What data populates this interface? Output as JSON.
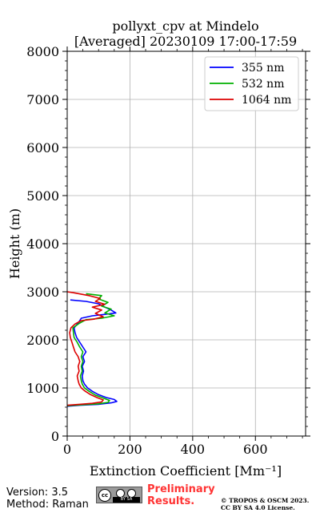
{
  "chart_data": {
    "type": "line",
    "title_line1": "pollyxt_cpv at Mindelo",
    "title_line2": "[Averaged] 20230109 17:00-17:59",
    "xlabel": "Extinction Coefficient [Mm⁻¹]",
    "ylabel": "Height (m)",
    "xlim": [
      0,
      760
    ],
    "ylim": [
      0,
      8000
    ],
    "x_ticks": [
      0,
      200,
      400,
      600
    ],
    "y_ticks": [
      0,
      1000,
      2000,
      3000,
      4000,
      5000,
      6000,
      7000,
      8000
    ],
    "grid": true,
    "legend_position": "upper right",
    "series": [
      {
        "name": "355 nm",
        "color": "#0000ff",
        "points": [
          [
            0,
            620
          ],
          [
            40,
            640
          ],
          [
            100,
            660
          ],
          [
            140,
            690
          ],
          [
            158,
            720
          ],
          [
            150,
            760
          ],
          [
            125,
            800
          ],
          [
            100,
            860
          ],
          [
            80,
            930
          ],
          [
            65,
            1000
          ],
          [
            55,
            1080
          ],
          [
            50,
            1150
          ],
          [
            48,
            1250
          ],
          [
            52,
            1350
          ],
          [
            48,
            1450
          ],
          [
            55,
            1550
          ],
          [
            50,
            1650
          ],
          [
            60,
            1750
          ],
          [
            50,
            1850
          ],
          [
            40,
            1950
          ],
          [
            30,
            2050
          ],
          [
            25,
            2150
          ],
          [
            22,
            2250
          ],
          [
            35,
            2350
          ],
          [
            45,
            2450
          ],
          [
            80,
            2500
          ],
          [
            120,
            2530
          ],
          [
            155,
            2560
          ],
          [
            140,
            2620
          ],
          [
            120,
            2680
          ],
          [
            100,
            2750
          ],
          [
            60,
            2800
          ],
          [
            10,
            2830
          ]
        ]
      },
      {
        "name": "532 nm",
        "color": "#00b000",
        "points": [
          [
            0,
            630
          ],
          [
            50,
            650
          ],
          [
            100,
            670
          ],
          [
            130,
            700
          ],
          [
            135,
            740
          ],
          [
            115,
            790
          ],
          [
            90,
            850
          ],
          [
            70,
            930
          ],
          [
            55,
            1000
          ],
          [
            48,
            1080
          ],
          [
            45,
            1150
          ],
          [
            42,
            1250
          ],
          [
            48,
            1350
          ],
          [
            45,
            1450
          ],
          [
            50,
            1550
          ],
          [
            45,
            1650
          ],
          [
            50,
            1750
          ],
          [
            40,
            1850
          ],
          [
            32,
            1950
          ],
          [
            22,
            2050
          ],
          [
            20,
            2150
          ],
          [
            18,
            2250
          ],
          [
            40,
            2350
          ],
          [
            60,
            2420
          ],
          [
            110,
            2450
          ],
          [
            150,
            2500
          ],
          [
            120,
            2560
          ],
          [
            140,
            2640
          ],
          [
            110,
            2700
          ],
          [
            130,
            2780
          ],
          [
            100,
            2850
          ],
          [
            110,
            2920
          ],
          [
            60,
            2960
          ]
        ]
      },
      {
        "name": "1064 nm",
        "color": "#dd0000",
        "points": [
          [
            0,
            640
          ],
          [
            40,
            660
          ],
          [
            80,
            680
          ],
          [
            110,
            710
          ],
          [
            115,
            750
          ],
          [
            95,
            800
          ],
          [
            75,
            860
          ],
          [
            58,
            930
          ],
          [
            45,
            1000
          ],
          [
            38,
            1080
          ],
          [
            35,
            1150
          ],
          [
            32,
            1250
          ],
          [
            38,
            1350
          ],
          [
            35,
            1450
          ],
          [
            40,
            1550
          ],
          [
            35,
            1650
          ],
          [
            25,
            1750
          ],
          [
            20,
            1850
          ],
          [
            15,
            1950
          ],
          [
            10,
            2050
          ],
          [
            8,
            2150
          ],
          [
            12,
            2250
          ],
          [
            25,
            2330
          ],
          [
            45,
            2400
          ],
          [
            85,
            2430
          ],
          [
            115,
            2480
          ],
          [
            90,
            2550
          ],
          [
            110,
            2620
          ],
          [
            80,
            2680
          ],
          [
            120,
            2740
          ],
          [
            90,
            2800
          ],
          [
            105,
            2860
          ],
          [
            70,
            2920
          ],
          [
            20,
            2980
          ],
          [
            0,
            3000
          ]
        ]
      }
    ]
  },
  "footer": {
    "version": "Version: 3.5",
    "method": "Method: Raman",
    "license_badge_text": "BY  SA",
    "preliminary_line1": "Preliminary",
    "preliminary_line2": "Results.",
    "copyright_line1": "© TROPOS & OSCM 2023.",
    "copyright_line2": "CC BY SA 4.0 License."
  }
}
